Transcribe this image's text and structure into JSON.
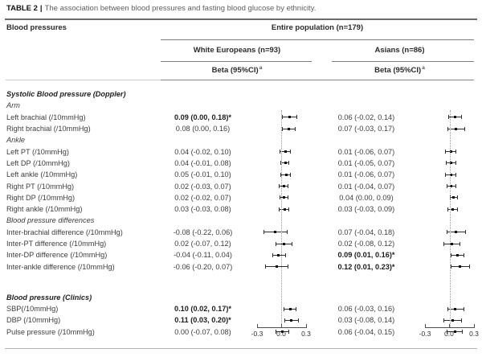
{
  "title": {
    "label": "TABLE 2",
    "separator": "|",
    "text": "The association between blood pressures and fasting blood glucose by ethnicity."
  },
  "header": {
    "col_blood_pressures": "Blood pressures",
    "entire_population": "Entire population (n=179)",
    "groups": [
      {
        "name": "White Europeans (n=93)",
        "beta_header": "Beta (95%CI)",
        "footnote_mark": "a"
      },
      {
        "name": "Asians (n=86)",
        "beta_header": "Beta (95%CI)",
        "footnote_mark": "a"
      }
    ]
  },
  "axis": {
    "min": -0.3,
    "max": 0.3,
    "zero": 0.0,
    "ticks": [
      "-0.3",
      "0.0",
      "0.3"
    ]
  },
  "rows": [
    {
      "type": "section",
      "label": "Systolic Blood pressure (Doppler)"
    },
    {
      "type": "subsection",
      "label": "Arm"
    },
    {
      "type": "data",
      "label": "Left brachial (/10mmHg)",
      "we": {
        "text": "0.09 (0.00, 0.18)*",
        "bold": true,
        "est": 0.09,
        "lo": 0.0,
        "hi": 0.18
      },
      "as": {
        "text": "0.06 (-0.02, 0.14)",
        "bold": false,
        "est": 0.06,
        "lo": -0.02,
        "hi": 0.14
      }
    },
    {
      "type": "data",
      "label": "Right brachial (/10mmHg)",
      "we": {
        "text": "0.08 (0.00, 0.16)",
        "bold": false,
        "est": 0.08,
        "lo": 0.0,
        "hi": 0.16
      },
      "as": {
        "text": "0.07 (-0.03, 0.17)",
        "bold": false,
        "est": 0.07,
        "lo": -0.03,
        "hi": 0.17
      }
    },
    {
      "type": "subsection",
      "label": "Ankle"
    },
    {
      "type": "data",
      "label": "Left PT (/10mmHg)",
      "we": {
        "text": "0.04 (-0.02, 0.10)",
        "bold": false,
        "est": 0.04,
        "lo": -0.02,
        "hi": 0.1
      },
      "as": {
        "text": "0.01 (-0.06, 0.07)",
        "bold": false,
        "est": 0.01,
        "lo": -0.06,
        "hi": 0.07
      }
    },
    {
      "type": "data",
      "label": "Left DP (/10mmHg)",
      "we": {
        "text": "0.04 (-0.01, 0.08)",
        "bold": false,
        "est": 0.04,
        "lo": -0.01,
        "hi": 0.08
      },
      "as": {
        "text": "0.01 (-0.05, 0.07)",
        "bold": false,
        "est": 0.01,
        "lo": -0.05,
        "hi": 0.07
      }
    },
    {
      "type": "data",
      "label": "Left ankle (/10mmHg)",
      "we": {
        "text": "0.05 (-0.01, 0.10)",
        "bold": false,
        "est": 0.05,
        "lo": -0.01,
        "hi": 0.1
      },
      "as": {
        "text": "0.01 (-0.06, 0.07)",
        "bold": false,
        "est": 0.01,
        "lo": -0.06,
        "hi": 0.07
      }
    },
    {
      "type": "data",
      "label": "Right PT (/10mmHg)",
      "we": {
        "text": "0.02 (-0.03, 0.07)",
        "bold": false,
        "est": 0.02,
        "lo": -0.03,
        "hi": 0.07
      },
      "as": {
        "text": "0.01 (-0.04, 0.07)",
        "bold": false,
        "est": 0.01,
        "lo": -0.04,
        "hi": 0.07
      }
    },
    {
      "type": "data",
      "label": "Right DP (/10mmHg)",
      "we": {
        "text": "0.02 (-0.02, 0.07)",
        "bold": false,
        "est": 0.02,
        "lo": -0.02,
        "hi": 0.07
      },
      "as": {
        "text": "0.04 (0.00, 0.09)",
        "bold": false,
        "est": 0.04,
        "lo": 0.0,
        "hi": 0.09
      }
    },
    {
      "type": "data",
      "label": "Right ankle (/10mmHg)",
      "we": {
        "text": "0.03 (-0.03, 0.08)",
        "bold": false,
        "est": 0.03,
        "lo": -0.03,
        "hi": 0.08
      },
      "as": {
        "text": "0.03 (-0.03, 0.09)",
        "bold": false,
        "est": 0.03,
        "lo": -0.03,
        "hi": 0.09
      }
    },
    {
      "type": "subsection",
      "label": "Blood pressure differences"
    },
    {
      "type": "data",
      "label": "Inter-brachial difference (/10mmHg)",
      "we": {
        "text": "-0.08 (-0.22, 0.06)",
        "bold": false,
        "est": -0.08,
        "lo": -0.22,
        "hi": 0.06
      },
      "as": {
        "text": "0.07 (-0.04, 0.18)",
        "bold": false,
        "est": 0.07,
        "lo": -0.04,
        "hi": 0.18
      }
    },
    {
      "type": "data",
      "label": "Inter-PT difference (/10mmHg)",
      "we": {
        "text": "0.02 (-0.07, 0.12)",
        "bold": false,
        "est": 0.02,
        "lo": -0.07,
        "hi": 0.12
      },
      "as": {
        "text": "0.02 (-0.08, 0.12)",
        "bold": false,
        "est": 0.02,
        "lo": -0.08,
        "hi": 0.12
      }
    },
    {
      "type": "data",
      "label": "Inter-DP difference (/10mmHg)",
      "we": {
        "text": "-0.04 (-0.11, 0.04)",
        "bold": false,
        "est": -0.04,
        "lo": -0.11,
        "hi": 0.04
      },
      "as": {
        "text": "0.09 (0.01, 0.16)*",
        "bold": true,
        "est": 0.09,
        "lo": 0.01,
        "hi": 0.16
      }
    },
    {
      "type": "data",
      "label": "Inter-ankle difference (/10mmHg)",
      "we": {
        "text": "-0.06 (-0.20, 0.07)",
        "bold": false,
        "est": -0.06,
        "lo": -0.2,
        "hi": 0.07
      },
      "as": {
        "text": "0.12 (0.01, 0.23)*",
        "bold": true,
        "est": 0.12,
        "lo": 0.01,
        "hi": 0.23
      }
    },
    {
      "type": "spacer"
    },
    {
      "type": "section",
      "label": "Blood pressure (Clinics)"
    },
    {
      "type": "data",
      "label": "SBP(/10mmHg)",
      "we": {
        "text": "0.10 (0.02, 0.17)*",
        "bold": true,
        "est": 0.1,
        "lo": 0.02,
        "hi": 0.17
      },
      "as": {
        "text": "0.06 (-0.03, 0.16)",
        "bold": false,
        "est": 0.06,
        "lo": -0.03,
        "hi": 0.16
      }
    },
    {
      "type": "data",
      "label": "DBP (/10mmHg)",
      "we": {
        "text": "0.11 (0.03, 0.20)*",
        "bold": true,
        "est": 0.11,
        "lo": 0.03,
        "hi": 0.2
      },
      "as": {
        "text": "0.03 (-0.08, 0.14)",
        "bold": false,
        "est": 0.03,
        "lo": -0.08,
        "hi": 0.14
      }
    },
    {
      "type": "data",
      "label": "Pulse pressure (/10mmHg)",
      "we": {
        "text": "0.00 (-0.07, 0.08)",
        "bold": false,
        "est": 0.0,
        "lo": -0.07,
        "hi": 0.08
      },
      "as": {
        "text": "0.06 (-0.04, 0.15)",
        "bold": false,
        "est": 0.06,
        "lo": -0.04,
        "hi": 0.15
      }
    }
  ],
  "colors": {
    "rule_dark": "#6a6a6a",
    "rule_mid": "#7d7d7d",
    "rule_light": "#c9c9c9",
    "marker": "#2e2e2e",
    "zero_line": "#9a9a9a"
  }
}
